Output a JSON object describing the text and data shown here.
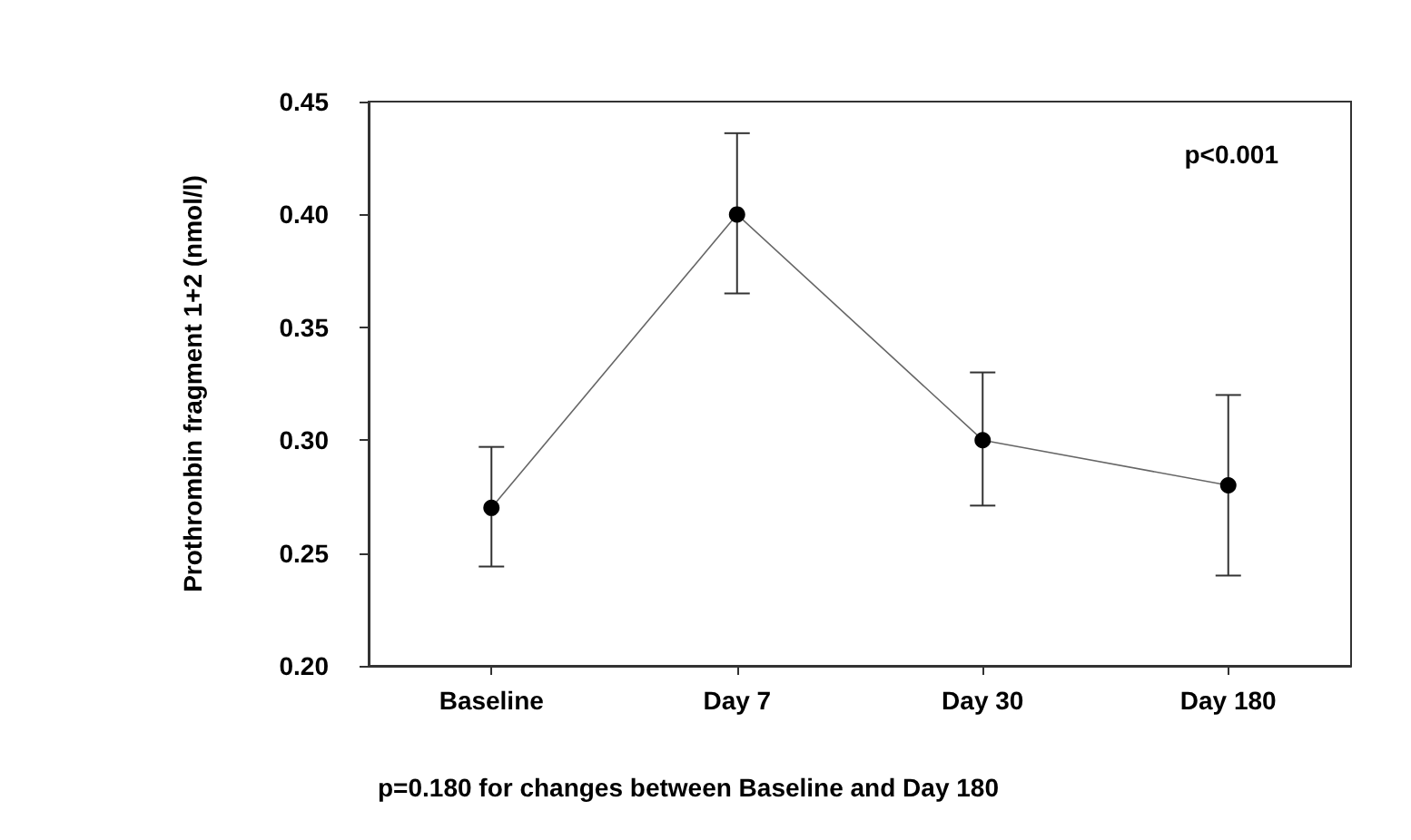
{
  "chart_data": {
    "type": "line",
    "ylabel": "Prothrombin fragment 1+2 (nmol/l)",
    "categories": [
      "Baseline",
      "Day 7",
      "Day 30",
      "Day 180"
    ],
    "series": [
      {
        "color": "#000000",
        "values": [
          0.27,
          0.4,
          0.3,
          0.28
        ],
        "errors": [
          [
            0.244,
            0.297
          ],
          [
            0.365,
            0.436
          ],
          [
            0.271,
            0.33
          ],
          [
            0.24,
            0.32
          ]
        ]
      }
    ],
    "ylim": [
      0.2,
      0.45
    ],
    "yticks": [
      {
        "value": 0.2,
        "label": "0.20"
      },
      {
        "value": 0.25,
        "label": "0.25"
      },
      {
        "value": 0.3,
        "label": "0.30"
      },
      {
        "value": 0.35,
        "label": "0.35"
      },
      {
        "value": 0.4,
        "label": "0.40"
      },
      {
        "value": 0.45,
        "label": "0.45"
      }
    ],
    "annotations": [
      "p<0.001",
      "p=0.180 for changes between Baseline and Day 180"
    ],
    "grid": false,
    "marker": "circle",
    "line_style": "solid"
  }
}
